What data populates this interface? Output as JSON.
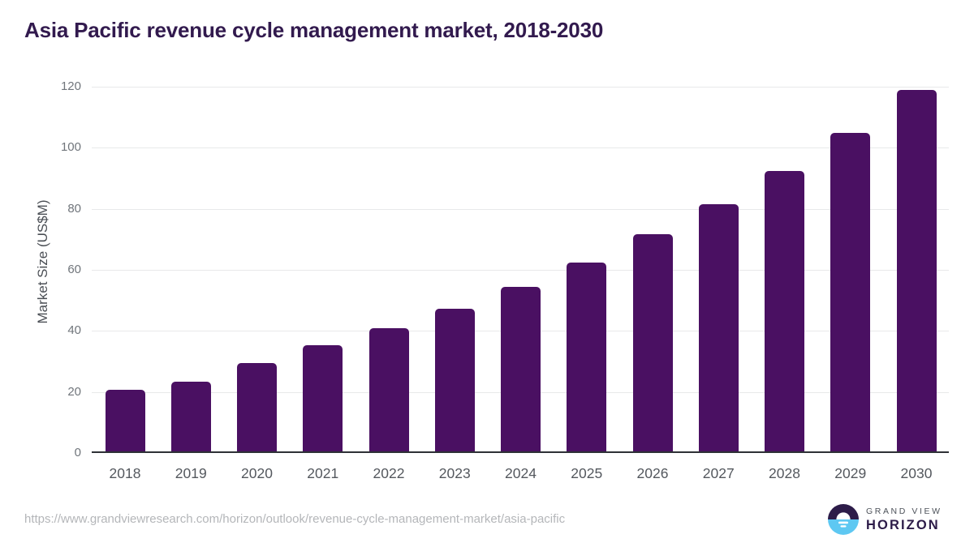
{
  "page": {
    "title": "Asia Pacific revenue cycle management market, 2018-2030"
  },
  "chart_data": {
    "type": "bar",
    "title": "Asia Pacific revenue cycle management market, 2018-2030",
    "categories": [
      "2018",
      "2019",
      "2020",
      "2021",
      "2022",
      "2023",
      "2024",
      "2025",
      "2026",
      "2027",
      "2028",
      "2029",
      "2030"
    ],
    "values": [
      20.8,
      23.4,
      29.5,
      35.3,
      41.0,
      47.3,
      54.4,
      62.4,
      71.6,
      81.4,
      92.5,
      105.0,
      118.9
    ],
    "xlabel": "",
    "ylabel": "Market Size (US$M)",
    "yticks": [
      0,
      20,
      40,
      60,
      80,
      100,
      120
    ],
    "ylim": [
      0,
      120
    ],
    "grid": true,
    "legend": "none",
    "bar_color": "#4a1062"
  },
  "footer": {
    "source_url": "https://www.grandviewresearch.com/horizon/outlook/revenue-cycle-management-market/asia-pacific",
    "logo": {
      "line1": "GRAND VIEW",
      "line2": "HORIZON",
      "mark_top_color": "#2d1c49",
      "mark_bottom_color": "#5ec8f2"
    }
  },
  "colors": {
    "title": "#321a4e",
    "bar": "#4a1062",
    "gridline": "#e8e9ea",
    "axis_line": "#2e3136",
    "y_tick_label": "#70757b",
    "x_tick_label": "#54585e",
    "source_url": "#b4b6b9"
  }
}
